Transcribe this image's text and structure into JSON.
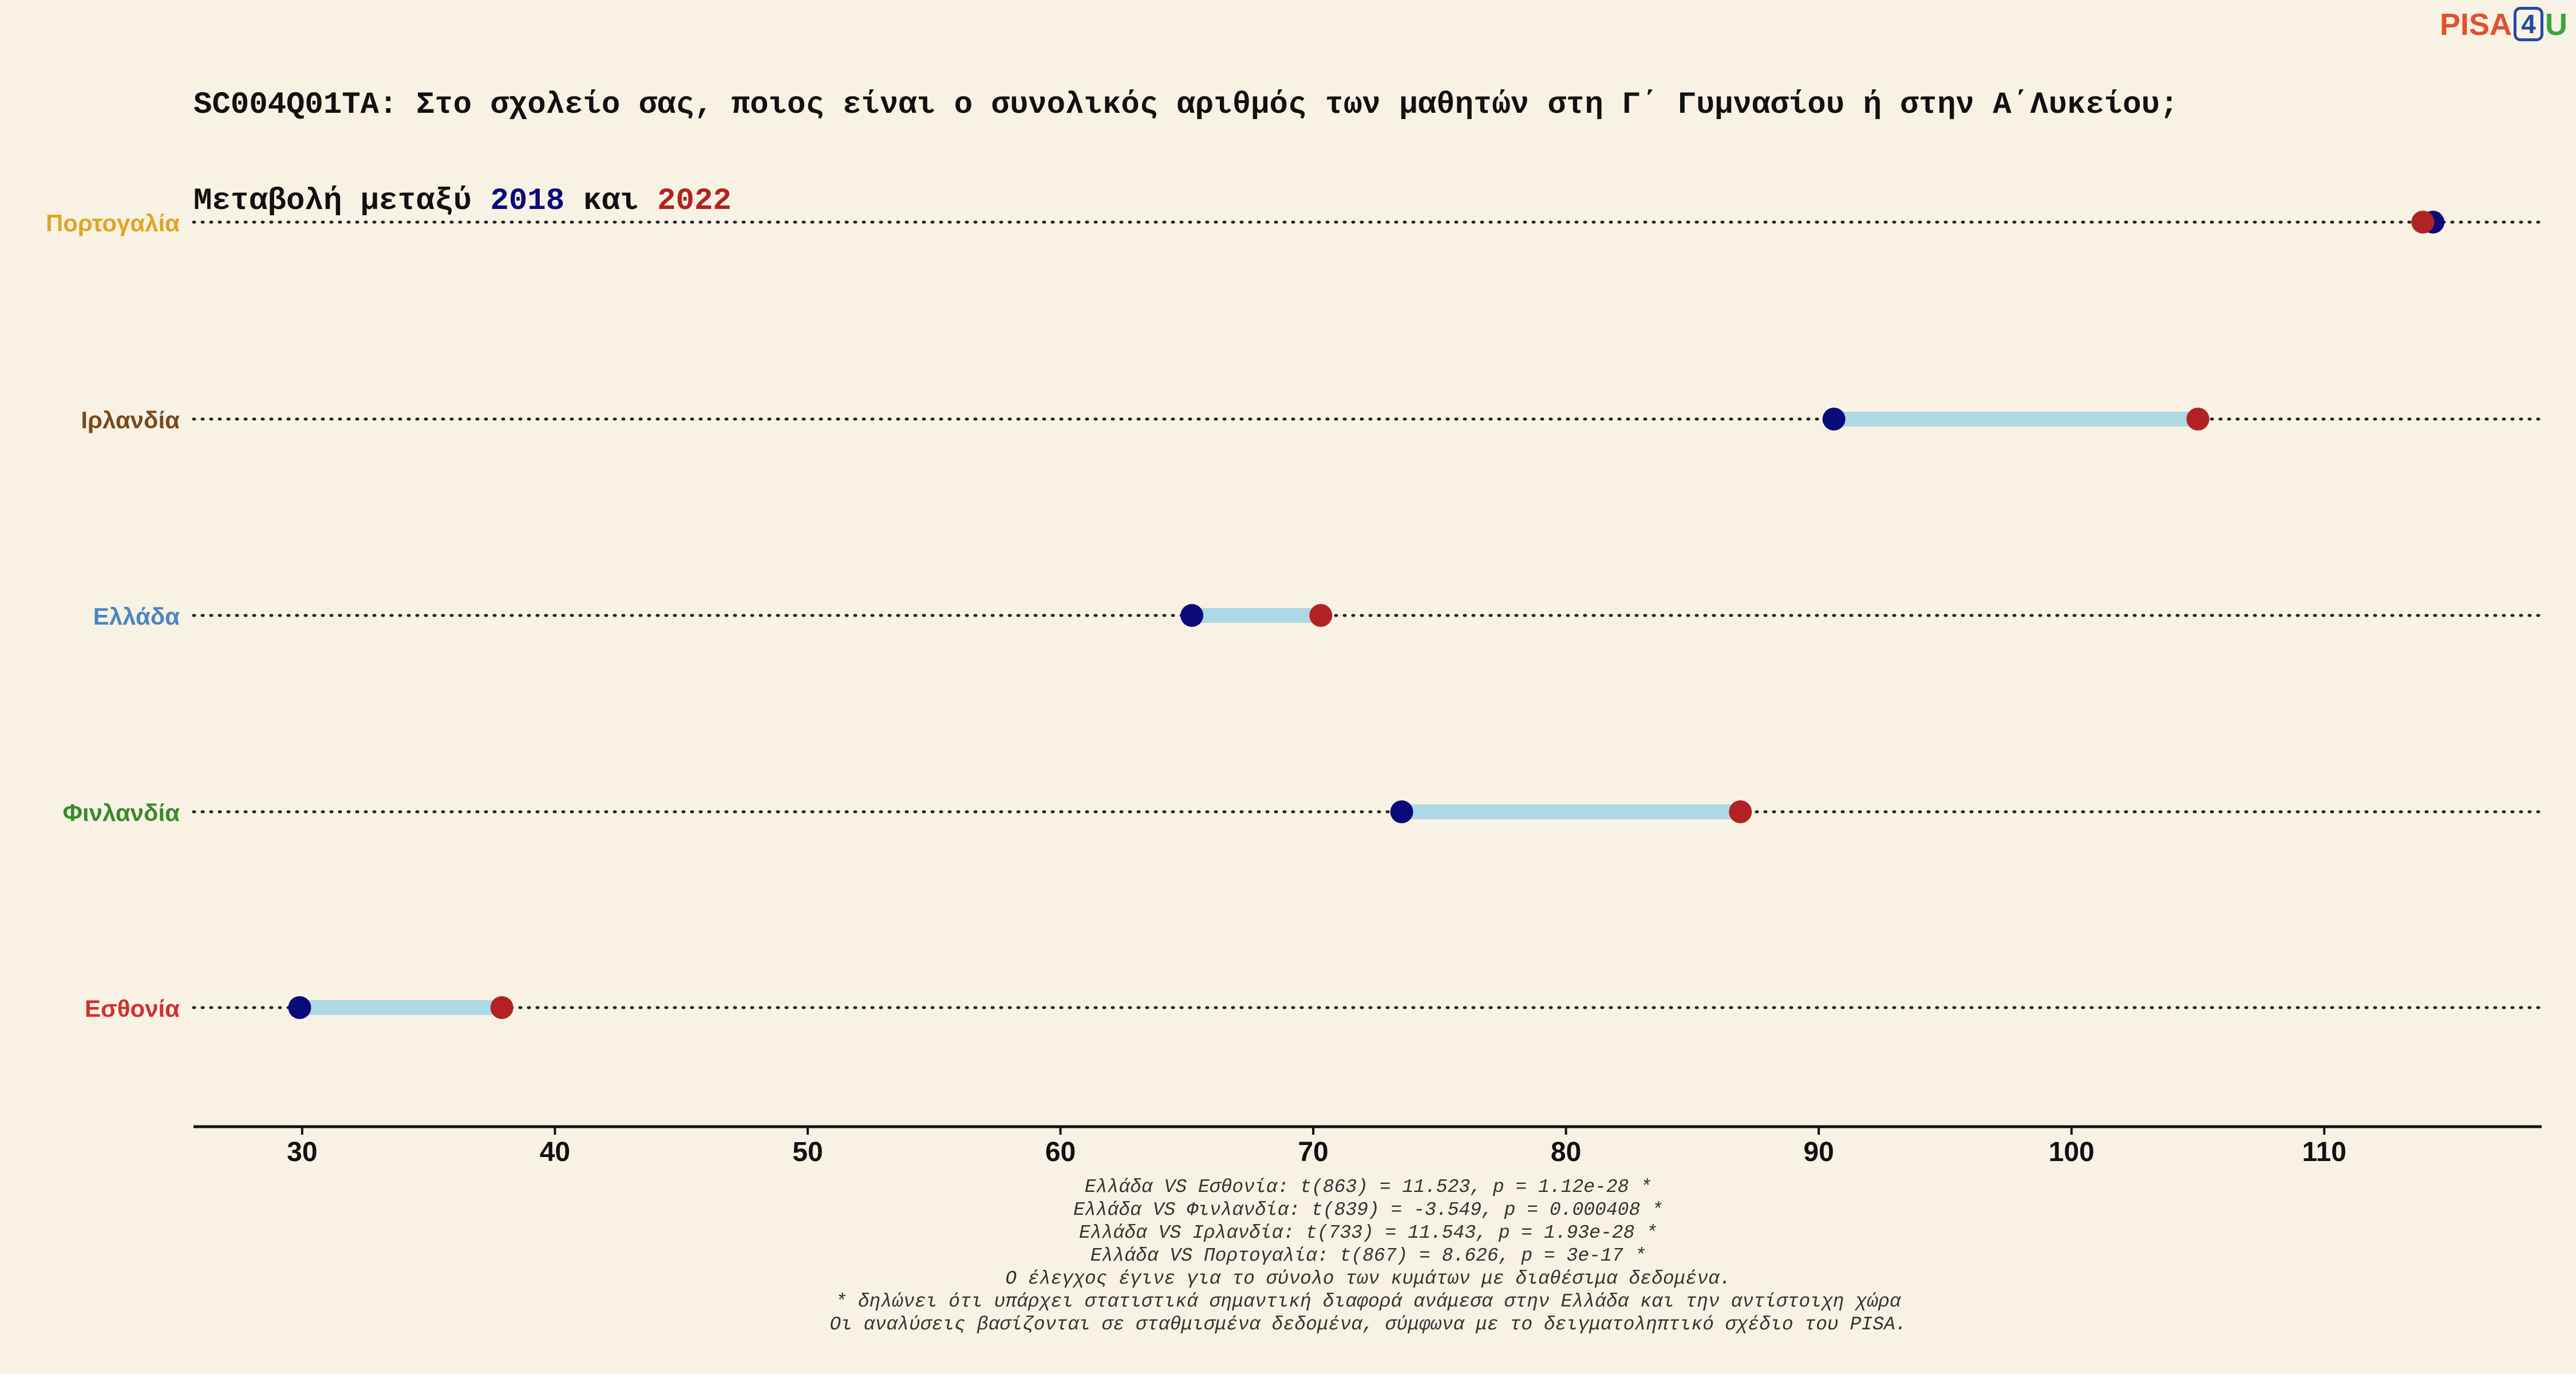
{
  "header": {
    "title_line1": "SC004Q01TA: Στο σχολείο σας, ποιος είναι ο συνολικός αριθμός των μαθητών στη Γ΄ Γυμνασίου ή στην Α΄Λυκείου;",
    "title_prefix": "Μεταβολή μεταξύ ",
    "title_mid": " και ",
    "year1": "2018",
    "year2": "2022",
    "year1_color": "#0a0a7a",
    "year2_color": "#b22222"
  },
  "logo": {
    "part1": "PISA",
    "part2": "4",
    "part3": "U"
  },
  "chart_data": {
    "type": "dumbbell",
    "x_ticks": [
      30,
      40,
      50,
      60,
      70,
      80,
      90,
      100,
      110
    ],
    "xlim": [
      25.7,
      118.6
    ],
    "grid": "dotted horizontal lines per category",
    "series": [
      {
        "name": "2018",
        "color": "#0a0a7a"
      },
      {
        "name": "2022",
        "color": "#b22222"
      }
    ],
    "connector_color": "#add8e6",
    "categories": [
      {
        "label": "Πορτογαλία",
        "label_color": "#e0a526",
        "v2018": 114.3,
        "v2022": 113.9
      },
      {
        "label": "Ιρλανδία",
        "label_color": "#7a4a1e",
        "v2018": 90.6,
        "v2022": 105.0
      },
      {
        "label": "Ελλάδα",
        "label_color": "#4a86c0",
        "v2018": 65.2,
        "v2022": 70.3
      },
      {
        "label": "Φινλανδία",
        "label_color": "#3a8a2a",
        "v2018": 73.5,
        "v2022": 86.9
      },
      {
        "label": "Εσθονία",
        "label_color": "#d03030",
        "v2018": 29.9,
        "v2022": 37.9
      }
    ]
  },
  "notes": [
    "Ελλάδα VS Εσθονία: t(863) = 11.523, p = 1.12e-28 *",
    "Ελλάδα VS Φινλανδία: t(839) = -3.549, p = 0.000408 *",
    "Ελλάδα VS Ιρλανδία: t(733) = 11.543, p = 1.93e-28 *",
    "Ελλάδα VS Πορτογαλία: t(867) = 8.626, p = 3e-17 *",
    "Ο έλεγχος έγινε για το σύνολο των κυμάτων με διαθέσιμα δεδομένα.",
    "* δηλώνει ότι υπάρχει στατιστικά σημαντική διαφορά ανάμεσα στην Ελλάδα και την αντίστοιχη χώρα",
    "Οι αναλύσεις βασίζονται σε σταθμισμένα δεδομένα, σύμφωνα με το δειγματοληπτικό σχέδιο του PISA."
  ]
}
